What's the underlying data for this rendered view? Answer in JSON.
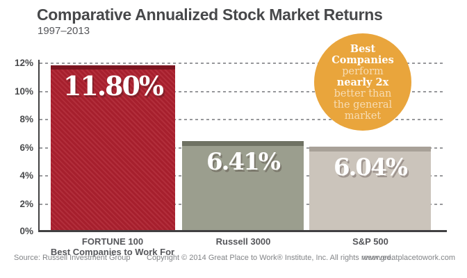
{
  "header": {
    "title": "Comparative Annualized Stock Market Returns",
    "subtitle": "1997–2013"
  },
  "chart_data": {
    "type": "bar",
    "title": "Comparative Annualized Stock Market Returns",
    "period": "1997–2013",
    "categories": [
      "FORTUNE 100 Best Companies to Work For",
      "Russell 3000",
      "S&P 500"
    ],
    "values": [
      11.8,
      6.41,
      6.04
    ],
    "value_labels": [
      "11.80%",
      "6.41%",
      "6.04%"
    ],
    "ylim": [
      0,
      12
    ],
    "y_ticks": [
      "12%",
      "10%",
      "8%",
      "6%",
      "4%",
      "2%",
      "0%"
    ],
    "grid": "dashed-horizontal",
    "legend": "none",
    "bars": [
      {
        "label_line1": "FORTUNE 100",
        "label_line2": "Best Companies to Work For",
        "value": 11.8,
        "value_label": "11.80%",
        "color": "#A61F2D",
        "stripe": "#B22E3B",
        "cap": "#7C1520"
      },
      {
        "label_line1": "Russell 3000",
        "label_line2": "",
        "value": 6.41,
        "value_label": "6.41%",
        "color": "#9B9E8E",
        "cap": "#6F7263"
      },
      {
        "label_line1": "S&P 500",
        "label_line2": "",
        "value": 6.04,
        "value_label": "6.04%",
        "color": "#CBC4BB",
        "cap": "#A8A198"
      }
    ]
  },
  "badge": {
    "color": "#E9A53C",
    "lines": [
      {
        "text": "Best",
        "style": "bold"
      },
      {
        "text": "Companies",
        "style": "bold"
      },
      {
        "text": "perform",
        "style": "light"
      },
      {
        "text": "nearly 2x",
        "style": "bold"
      },
      {
        "text": "better than",
        "style": "light"
      },
      {
        "text": "the general",
        "style": "light"
      },
      {
        "text": "market",
        "style": "light"
      }
    ]
  },
  "footer": {
    "source": "Source: Russell Investment Group",
    "copyright": "Copyright © 2014 Great Place to Work® Institute, Inc. All rights reserved.",
    "website": "www.greatplacetowork.com"
  }
}
